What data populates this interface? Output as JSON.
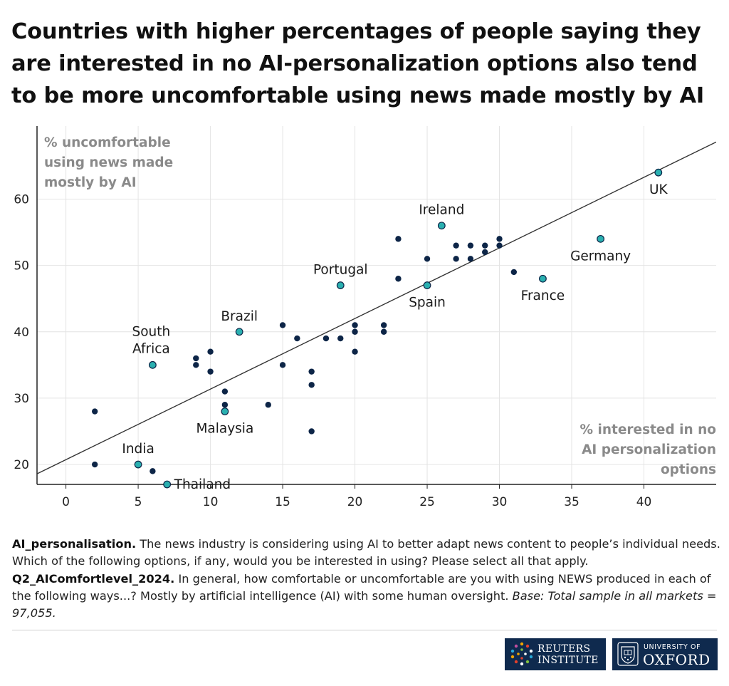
{
  "title": "Countries with higher percentages of people saying they are interested in no AI-personalization options also tend to be more uncomfortable using news made mostly by AI",
  "notes": {
    "q1_label": "AI_personalisation.",
    "q1_text": " The news industry is considering using AI to better adapt news content to people’s individual needs. Which of the following options, if any, would you be interested in using? Please select all that apply. ",
    "q2_label": "Q2_AIComfortlevel_2024.",
    "q2_text": " In general, how comfortable or uncomfortable are you with using NEWS produced in each of the following ways...? Mostly by artificial intelligence (AI) with some human oversight. ",
    "base": "Base: Total sample in all markets = 97,055."
  },
  "logos": {
    "reuters_line1": "REUTERS",
    "reuters_line2": "INSTITUTE",
    "oxford_line1": "UNIVERSITY OF",
    "oxford_line2": "OXFORD"
  },
  "colors": {
    "highlight": "#2ab0b0",
    "point": "#0d2547",
    "trendline": "#333333",
    "grid": "#e4e4e4",
    "axis_label": "#8a8a8a"
  },
  "chart_data": {
    "type": "scatter",
    "ylabel": "% uncomfortable using news made mostly by AI",
    "ylabel_lines": [
      "% uncomfortable",
      "using news made",
      "mostly by AI"
    ],
    "xlabel": "% interested in no AI personalization options",
    "xlabel_lines": [
      "% interested in no",
      "AI personalization",
      "options"
    ],
    "xlim": [
      -2,
      45
    ],
    "ylim": [
      17,
      71
    ],
    "xticks": [
      0,
      5,
      10,
      15,
      20,
      25,
      30,
      35,
      40
    ],
    "yticks": [
      20,
      30,
      40,
      50,
      60
    ],
    "grid": true,
    "trendline": {
      "x": [
        -2,
        45
      ],
      "y": [
        18.6,
        68.6
      ]
    },
    "highlighted": [
      {
        "label": "UK",
        "x": 41,
        "y": 64
      },
      {
        "label": "Ireland",
        "x": 26,
        "y": 56
      },
      {
        "label": "Germany",
        "x": 37,
        "y": 54
      },
      {
        "label": "France",
        "x": 33,
        "y": 48
      },
      {
        "label": "Spain",
        "x": 25,
        "y": 47
      },
      {
        "label": "Portugal",
        "x": 19,
        "y": 47
      },
      {
        "label": "Brazil",
        "x": 12,
        "y": 40
      },
      {
        "label": "South Africa",
        "x": 6,
        "y": 35
      },
      {
        "label": "Malaysia",
        "x": 11,
        "y": 28
      },
      {
        "label": "India",
        "x": 5,
        "y": 20
      },
      {
        "label": "Thailand",
        "x": 7,
        "y": 17
      }
    ],
    "points": [
      [
        2,
        28
      ],
      [
        2,
        20
      ],
      [
        6,
        19
      ],
      [
        9,
        36
      ],
      [
        9,
        35
      ],
      [
        10,
        37
      ],
      [
        10,
        34
      ],
      [
        11,
        31
      ],
      [
        11,
        29
      ],
      [
        14,
        29
      ],
      [
        15,
        41
      ],
      [
        15,
        35
      ],
      [
        16,
        39
      ],
      [
        17,
        34
      ],
      [
        17,
        32
      ],
      [
        17,
        25
      ],
      [
        18,
        39
      ],
      [
        19,
        39
      ],
      [
        20,
        41
      ],
      [
        20,
        40
      ],
      [
        20,
        37
      ],
      [
        22,
        41
      ],
      [
        22,
        40
      ],
      [
        23,
        54
      ],
      [
        23,
        48
      ],
      [
        25,
        51
      ],
      [
        27,
        53
      ],
      [
        27,
        51
      ],
      [
        28,
        53
      ],
      [
        28,
        51
      ],
      [
        29,
        53
      ],
      [
        29,
        52
      ],
      [
        30,
        54
      ],
      [
        30,
        53
      ],
      [
        31,
        49
      ]
    ]
  }
}
